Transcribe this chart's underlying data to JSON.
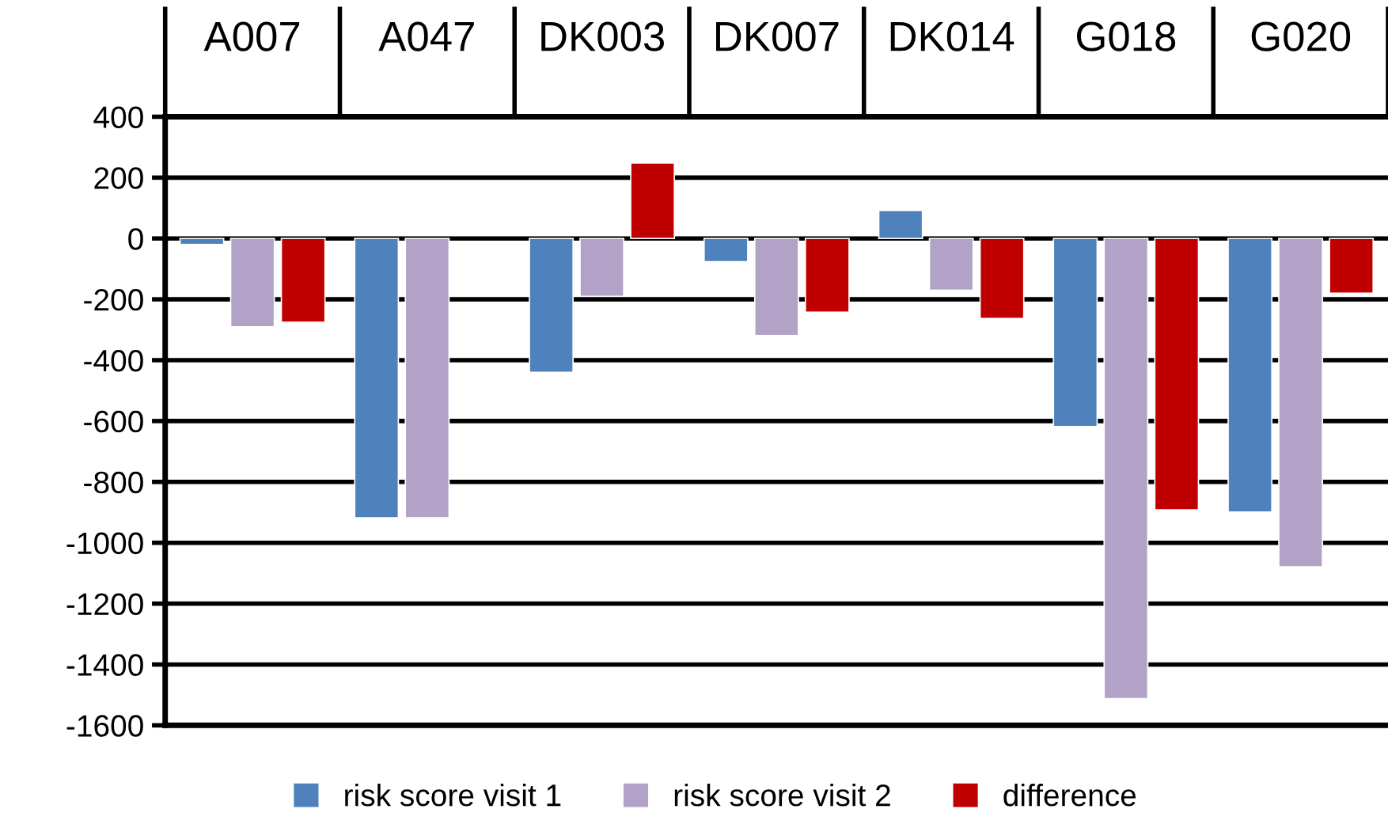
{
  "chart_data": {
    "type": "bar",
    "categories": [
      "A007",
      "A047",
      "DK003",
      "DK007",
      "DK014",
      "G018",
      "G020"
    ],
    "series": [
      {
        "name": "risk score visit 1",
        "color": "#4f81bd",
        "values": [
          -20,
          -918,
          -440,
          -76,
          92,
          -618,
          -899
        ]
      },
      {
        "name": "risk score visit 2",
        "color": "#b3a2c7",
        "values": [
          -290,
          -918,
          -190,
          -319,
          -170,
          -1512,
          -1079
        ]
      },
      {
        "name": "difference",
        "color": "#c00000",
        "values": [
          -275,
          null,
          248,
          -242,
          -263,
          -892,
          -180
        ]
      }
    ],
    "ylim": [
      -1600,
      400
    ],
    "yticks": [
      -1600,
      -1400,
      -1200,
      -1000,
      -800,
      -600,
      -400,
      -200,
      0,
      200,
      400
    ],
    "grid": "y",
    "legend": "bottom"
  }
}
